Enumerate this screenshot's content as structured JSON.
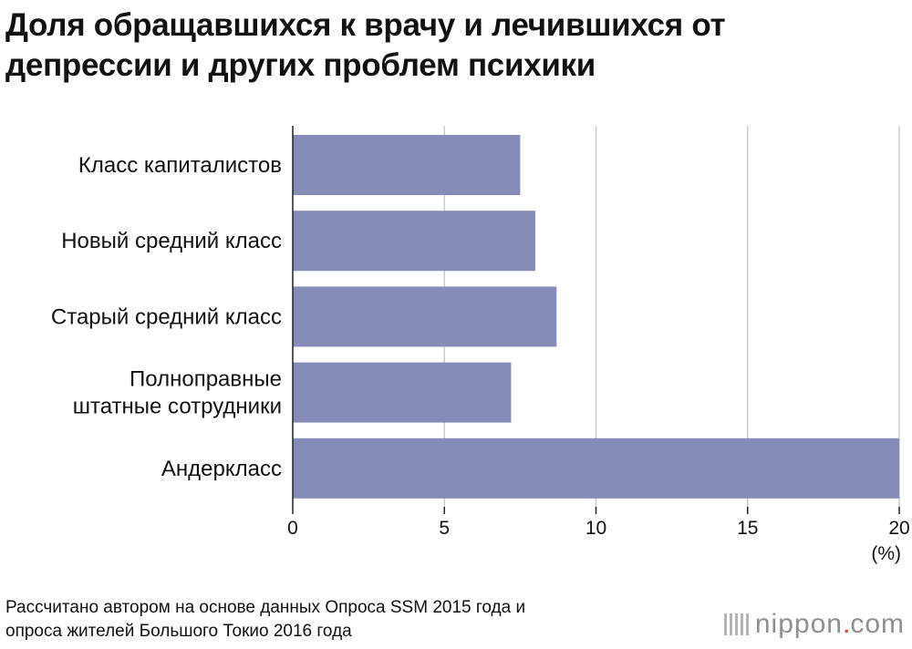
{
  "chart_data": {
    "type": "bar",
    "orientation": "horizontal",
    "title": "Доля обращавшихся к врачу и лечившихся от\nдепрессии и других проблем психики",
    "categories": [
      [
        "Класс капиталистов"
      ],
      [
        "Новый средний класс"
      ],
      [
        "Старый средний класс"
      ],
      [
        "Полноправные",
        "штатные сотрудники"
      ],
      [
        "Андеркласс"
      ]
    ],
    "values": [
      7.5,
      8.0,
      8.7,
      7.2,
      20.0
    ],
    "xlim": [
      0,
      20
    ],
    "xticks": [
      "0",
      "5",
      "10",
      "15",
      "20"
    ],
    "xlabel": "(%)",
    "ylabel": "",
    "grid": "vertical",
    "legend": "none"
  },
  "colors": {
    "bar": "#868cb8",
    "grid": "#cccccc",
    "axis": "#222222",
    "text": "#111111",
    "brand_accent": "#e0362c"
  },
  "source": "Рассчитано автором на основе данных Опроса SSM 2015 года и\nопроса жителей Большого Токио 2016 года",
  "brand": {
    "name": "nippon",
    "dot": ".",
    "domain": "com",
    "icon": "nippon-stripes-icon"
  }
}
